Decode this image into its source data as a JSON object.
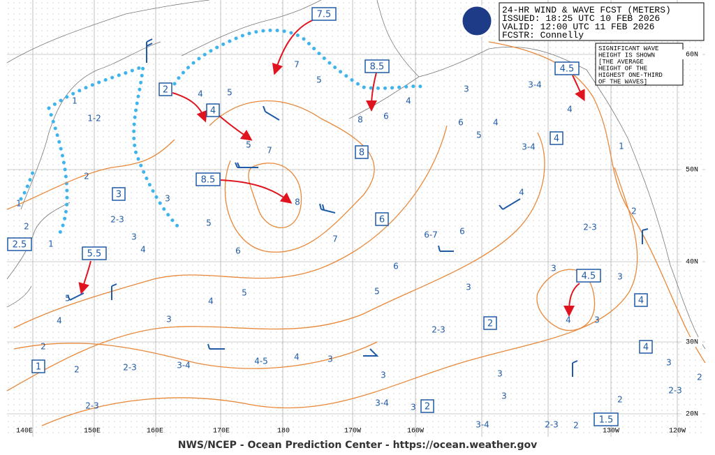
{
  "header": {
    "title": "24-HR WIND & WAVE FCST (METERS)",
    "issued": "ISSUED: 18:25 UTC 10 FEB 2026",
    "valid": "VALID:  12:00 UTC 11 FEB 2026",
    "forecaster": "FCSTR:  Connelly"
  },
  "note": [
    "SIGNIFICANT WAVE",
    "HEIGHT IS SHOWN",
    "[THE AVERAGE",
    "HEIGHT OF THE",
    "HIGHEST ONE-THIRD",
    "OF THE WAVES]"
  ],
  "footer": "NWS/NCEP - Ocean Prediction Center - https://ocean.weather.gov",
  "lat_labels": [
    "60N",
    "50N",
    "40N",
    "30N",
    "20N"
  ],
  "lon_labels": [
    "140E",
    "150E",
    "160E",
    "170E",
    "180",
    "170W",
    "160W",
    "130W",
    "120W"
  ],
  "boxed_labels": [
    "7.5",
    "2",
    "4",
    "8.5",
    "4.5",
    "4",
    "8",
    "3",
    "8.5",
    "6",
    "2.5",
    "5.5",
    "4.5",
    "4",
    "2",
    "4",
    "1",
    "2",
    "1.5"
  ],
  "wave_labels": [
    "1",
    "1-2",
    "2",
    "1",
    "2",
    "1",
    "2-3",
    "3",
    "4",
    "5",
    "5",
    "7",
    "7",
    "5",
    "6",
    "8",
    "4",
    "3",
    "3-4",
    "4",
    "6",
    "5",
    "4",
    "3-4",
    "1",
    "5",
    "6",
    "8",
    "7",
    "6-7",
    "6",
    "4",
    "2-3",
    "2",
    "4",
    "3",
    "5",
    "6",
    "5",
    "3",
    "3",
    "3",
    "4",
    "3",
    "5",
    "4",
    "2",
    "4",
    "3",
    "2-3",
    "2",
    "2-3",
    "3-4",
    "4-5",
    "4",
    "3",
    "3",
    "3",
    "3",
    "2",
    "2-3",
    "3",
    "3-4",
    "3",
    "2-3",
    "3-4",
    "2-3",
    "2",
    "2"
  ]
}
